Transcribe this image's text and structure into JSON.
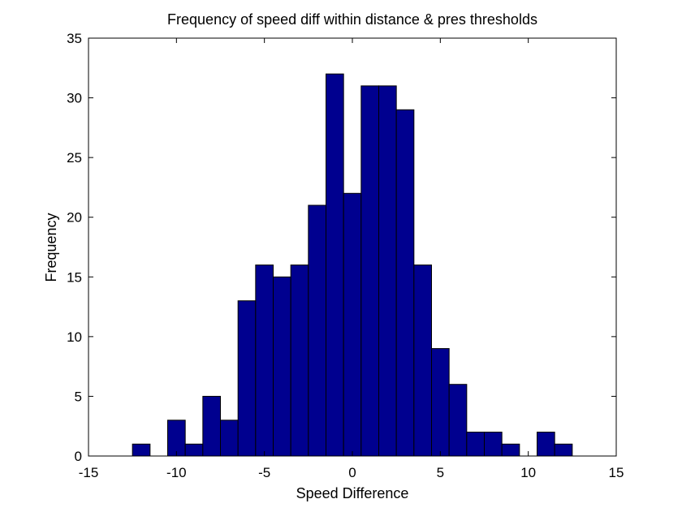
{
  "chart_data": {
    "type": "bar",
    "title": "Frequency of speed diff within distance & pres thresholds",
    "xlabel": "Speed Difference",
    "ylabel": "Frequency",
    "xlim": [
      -15,
      15
    ],
    "ylim": [
      0,
      35
    ],
    "xticks": [
      -15,
      -10,
      -5,
      0,
      5,
      10,
      15
    ],
    "yticks": [
      0,
      5,
      10,
      15,
      20,
      25,
      30,
      35
    ],
    "grid": false,
    "bar_color": "#00008F",
    "bin_width": 1,
    "bins": [
      {
        "center": -12.0,
        "value": 1
      },
      {
        "center": -11.0,
        "value": 0
      },
      {
        "center": -10.0,
        "value": 3
      },
      {
        "center": -9.0,
        "value": 1
      },
      {
        "center": -8.0,
        "value": 5
      },
      {
        "center": -7.0,
        "value": 3
      },
      {
        "center": -6.0,
        "value": 13
      },
      {
        "center": -5.0,
        "value": 16
      },
      {
        "center": -4.0,
        "value": 15
      },
      {
        "center": -3.0,
        "value": 16
      },
      {
        "center": -2.0,
        "value": 21
      },
      {
        "center": -1.0,
        "value": 32
      },
      {
        "center": 0.0,
        "value": 22
      },
      {
        "center": 1.0,
        "value": 31
      },
      {
        "center": 2.0,
        "value": 31
      },
      {
        "center": 3.0,
        "value": 29
      },
      {
        "center": 4.0,
        "value": 16
      },
      {
        "center": 5.0,
        "value": 9
      },
      {
        "center": 6.0,
        "value": 6
      },
      {
        "center": 7.0,
        "value": 2
      },
      {
        "center": 8.0,
        "value": 2
      },
      {
        "center": 9.0,
        "value": 1
      },
      {
        "center": 10.0,
        "value": 0
      },
      {
        "center": 11.0,
        "value": 2
      },
      {
        "center": 12.0,
        "value": 1
      }
    ]
  }
}
